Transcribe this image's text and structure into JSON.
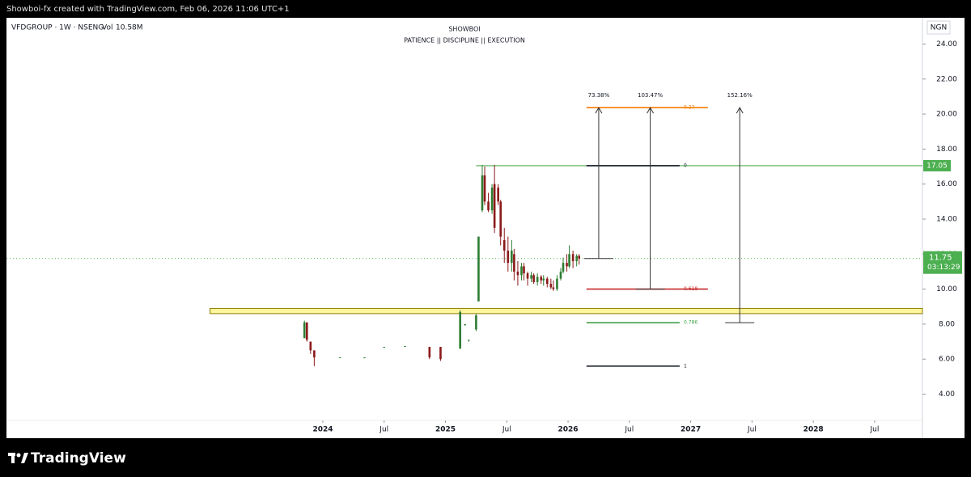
{
  "chart_data": {
    "type": "candlestick",
    "header": "Showboi-fx created with TradingView.com, Feb 06, 2026 11:06 UTC+1",
    "symbol": "VFDGROUP · 1W · NSENG",
    "volume_label": "Vol",
    "volume": "10.58M",
    "title": "SHOWBOI",
    "subtitle": "PATIENCE || DISCIPLINE || EXECUTION",
    "currency": "NGN",
    "brand": "TradingView",
    "up_color": "#2e7d32",
    "down_color": "#8b1a1a",
    "xlim": [
      2021.42,
      2028.89
    ],
    "xticks": [
      2024,
      {
        "value": 2024.5,
        "label": "Jul"
      },
      2025,
      {
        "value": 2025.5,
        "label": "Jul"
      },
      2026,
      {
        "value": 2026.5,
        "label": "Jul"
      },
      2027,
      {
        "value": 2027.5,
        "label": "Jul"
      },
      2028,
      {
        "value": 2028.5,
        "label": "Jul"
      }
    ],
    "ylim": [
      2.5,
      25.5
    ],
    "yticks": [
      {
        "value": 4,
        "label": "4.00"
      },
      {
        "value": 6,
        "label": "6.00"
      },
      {
        "value": 8,
        "label": "8.00"
      },
      {
        "value": 10,
        "label": "10.00"
      },
      {
        "value": 12,
        "label": "12.00"
      },
      {
        "value": 14,
        "label": "14.00"
      },
      {
        "value": 16,
        "label": "16.00"
      },
      {
        "value": 18,
        "label": "18.00"
      },
      {
        "value": 20,
        "label": "20.00"
      },
      {
        "value": 22,
        "label": "22.00"
      },
      {
        "value": 24,
        "label": "24.00"
      }
    ],
    "x": [
      2023.85,
      2023.87,
      2023.9,
      2023.93,
      2024.14,
      2024.34,
      2024.5,
      2024.67,
      2024.87,
      2024.96,
      2025.12,
      2025.16,
      2025.19,
      2025.25,
      2025.27,
      2025.3,
      2025.32,
      2025.35,
      2025.38,
      2025.4,
      2025.43,
      2025.45,
      2025.48,
      2025.51,
      2025.54,
      2025.56,
      2025.59,
      2025.62,
      2025.64,
      2025.67,
      2025.7,
      2025.72,
      2025.75,
      2025.78,
      2025.8,
      2025.83,
      2025.86,
      2025.88,
      2025.91,
      2025.94,
      2025.96,
      2025.99,
      2026.01,
      2026.04,
      2026.07,
      2026.09
    ],
    "open": [
      7.2,
      8.1,
      7.0,
      6.5,
      6.1,
      6.1,
      6.7,
      6.75,
      6.7,
      6.7,
      6.6,
      8.0,
      7.1,
      7.7,
      9.3,
      14.5,
      16.5,
      15.0,
      14.5,
      16.0,
      15.8,
      15.0,
      12.8,
      12.2,
      11.5,
      12.0,
      11.0,
      10.8,
      11.3,
      10.9,
      10.6,
      10.8,
      10.4,
      10.7,
      10.5,
      10.6,
      10.3,
      10.1,
      10.0,
      10.6,
      11.0,
      11.5,
      11.3,
      12.0,
      11.6,
      11.9
    ],
    "high": [
      8.2,
      8.1,
      7.0,
      6.5,
      6.1,
      6.1,
      6.7,
      6.75,
      6.7,
      6.7,
      8.8,
      8.0,
      7.1,
      8.6,
      13.0,
      17.1,
      17.0,
      15.5,
      16.0,
      17.1,
      16.0,
      15.1,
      13.5,
      13.0,
      12.8,
      12.3,
      11.6,
      11.5,
      11.5,
      11.0,
      11.0,
      10.9,
      10.9,
      10.8,
      10.8,
      10.7,
      10.6,
      10.5,
      10.8,
      11.2,
      11.8,
      12.0,
      12.5,
      12.2,
      12.0,
      12.0
    ],
    "low": [
      7.2,
      7.0,
      6.3,
      5.6,
      6.1,
      6.1,
      6.7,
      6.75,
      6.0,
      5.9,
      6.6,
      7.9,
      7.0,
      7.6,
      9.3,
      14.4,
      14.8,
      14.4,
      14.3,
      13.2,
      14.8,
      12.5,
      11.5,
      11.0,
      11.0,
      10.5,
      10.2,
      10.5,
      10.5,
      10.2,
      10.4,
      10.3,
      10.2,
      10.3,
      10.2,
      10.1,
      10.0,
      9.9,
      9.9,
      10.5,
      10.9,
      11.0,
      11.2,
      11.2,
      11.3,
      11.4
    ],
    "close": [
      8.1,
      7.1,
      6.5,
      6.1,
      6.1,
      6.1,
      6.7,
      6.75,
      6.1,
      6.0,
      8.7,
      8.0,
      7.1,
      8.5,
      13.0,
      16.5,
      15.0,
      14.5,
      15.8,
      13.5,
      15.0,
      13.0,
      12.2,
      11.5,
      12.2,
      11.0,
      10.8,
      11.3,
      10.9,
      10.6,
      10.8,
      10.4,
      10.7,
      10.5,
      10.6,
      10.3,
      10.1,
      10.0,
      10.6,
      11.0,
      11.5,
      11.3,
      12.0,
      11.6,
      11.9,
      11.75
    ],
    "zone": {
      "from": 8.6,
      "to": 8.9,
      "start": 2023.08,
      "color": "#fff59d"
    },
    "horizontal_line": {
      "price": 17.05,
      "start": 2025.25,
      "color": "#4caf50"
    },
    "last_price": 11.75,
    "countdown": "03:13:29",
    "last_color": "#4caf50",
    "fib_levels": [
      {
        "ratio": 0.27,
        "price": 20.37,
        "color": "#f57c00",
        "start": 2026.15,
        "end": 2027.14
      },
      {
        "ratio": 0,
        "price": 17.05,
        "color": "#131722",
        "start": 2026.15,
        "end": 2026.91
      },
      {
        "ratio": 0.618,
        "price": 10.0,
        "color": "#c62828",
        "start": 2026.15,
        "end": 2027.14
      },
      {
        "ratio": 0.786,
        "price": 8.08,
        "color": "#43a047",
        "start": 2026.15,
        "end": 2026.91
      },
      {
        "ratio": 1,
        "price": 5.6,
        "color": "#131722",
        "start": 2026.15,
        "end": 2026.91
      }
    ],
    "arrows": [
      {
        "label": "73.38%",
        "x": 2026.25,
        "from": 11.75,
        "to": 20.37
      },
      {
        "label": "103.47%",
        "x": 2026.67,
        "from": 10.0,
        "to": 20.37
      },
      {
        "label": "152.16%",
        "x": 2027.4,
        "from": 8.08,
        "to": 20.37
      }
    ]
  }
}
